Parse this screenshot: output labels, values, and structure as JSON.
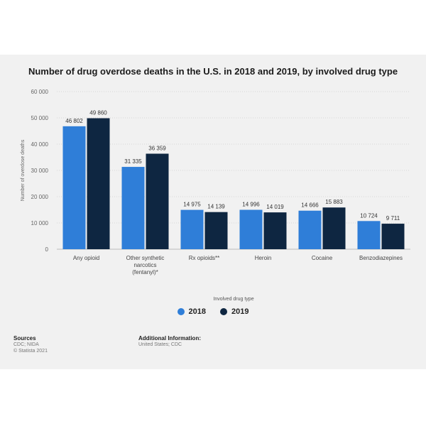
{
  "chart_data": {
    "type": "bar",
    "title": "Number of drug overdose deaths in the U.S. in 2018 and 2019, by involved drug type",
    "xlabel": "Involved drug type",
    "ylabel": "Number of overdose deaths",
    "ylim": [
      0,
      60000
    ],
    "yticks": [
      0,
      10000,
      20000,
      30000,
      40000,
      50000,
      60000
    ],
    "ytick_labels": [
      "0",
      "10 000",
      "20 000",
      "30 000",
      "40 000",
      "50 000",
      "60 000"
    ],
    "categories": [
      [
        "Any opioid"
      ],
      [
        "Other synthetic",
        "narcotics",
        "(fentanyl)*"
      ],
      [
        "Rx opioids**"
      ],
      [
        "Heroin"
      ],
      [
        "Cocaine"
      ],
      [
        "Benzodiazepines"
      ]
    ],
    "series": [
      {
        "name": "2018",
        "color": "#2f7ed8",
        "values": [
          46802,
          31335,
          14975,
          14996,
          14666,
          10724
        ],
        "labels": [
          "46 802",
          "31 335",
          "14 975",
          "14 996",
          "14 666",
          "10 724"
        ]
      },
      {
        "name": "2019",
        "color": "#0e2641",
        "values": [
          49860,
          36359,
          14139,
          14019,
          15883,
          9711
        ],
        "labels": [
          "49 860",
          "36 359",
          "14 139",
          "14 019",
          "15 883",
          "9 711"
        ]
      }
    ],
    "grid": true,
    "legend_position": "bottom-center"
  },
  "footer": {
    "sources_heading": "Sources",
    "sources_line1": "CDC; NIDA",
    "sources_line2": "© Statista 2021",
    "additional_heading": "Additional Information:",
    "additional_text": "United States; CDC"
  }
}
